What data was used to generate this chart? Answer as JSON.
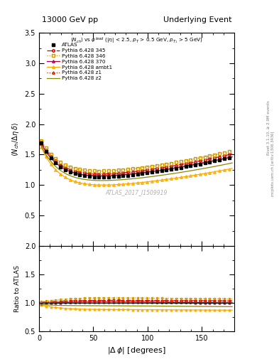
{
  "title_left": "13000 GeV pp",
  "title_right": "Underlying Event",
  "ylabel_main": "$\\langle N_{ch} / \\Delta\\eta\\,\\delta\\rangle$",
  "ylabel_ratio": "Ratio to ATLAS",
  "xlabel": "$|\\Delta\\,\\phi|$ [degrees]",
  "annotation": "$\\langle N_{ch}\\rangle$ vs $\\phi^{lead}$ ($|\\eta|$ < 2.5, $p_{T}$ > 0.5 GeV, $p_{T_1}$ > 5 GeV)",
  "watermark": "ATLAS_2017_I1509919",
  "right_label1": "Rivet 3.1.10, ≥ 2.9M events",
  "right_label2": "mcplots.cern.ch [arXiv:1306.3436]",
  "ylim_main": [
    0.0,
    3.5
  ],
  "ylim_ratio": [
    0.5,
    2.0
  ],
  "xlim": [
    0,
    180
  ],
  "yticks_main": [
    0.5,
    1.0,
    1.5,
    2.0,
    2.5,
    3.0,
    3.5
  ],
  "yticks_ratio": [
    0.5,
    1.0,
    1.5,
    2.0
  ],
  "xticks": [
    0,
    50,
    100,
    150
  ],
  "series_colors": [
    "#cc0000",
    "#cc9900",
    "#aa0044",
    "#ffaa00",
    "#cc2200",
    "#888800"
  ],
  "series_linestyles": [
    "-.",
    ":",
    "-",
    "-",
    ":",
    "-"
  ],
  "series_markers": [
    "o",
    "s",
    "^",
    "^",
    "^",
    "none"
  ],
  "series_names": [
    "Pythia 6.428 345",
    "Pythia 6.428 346",
    "Pythia 6.428 370",
    "Pythia 6.428 ambt1",
    "Pythia 6.428 z1",
    "Pythia 6.428 z2"
  ]
}
